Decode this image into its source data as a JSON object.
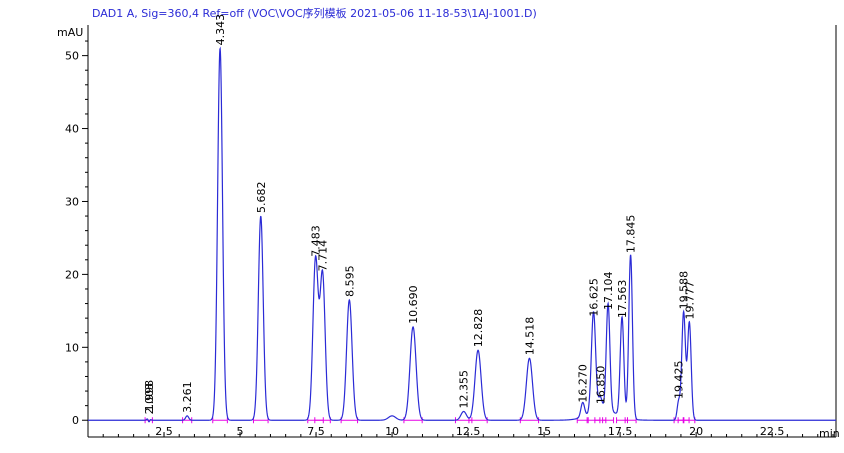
{
  "chart_data": {
    "type": "line",
    "title": "DAD1 A, Sig=360,4 Ref=off (VOC\\VOC序列模板 2021-05-06 11-18-53\\1AJ-1001.D)",
    "ylabel": "mAU",
    "xlabel": "min",
    "xlim": [
      0,
      24.6
    ],
    "ylim": [
      -2.3,
      54.2
    ],
    "x_ticks": [
      2.5,
      5,
      7.5,
      10,
      12.5,
      15,
      17.5,
      20,
      22.5
    ],
    "x_tick_labels": [
      "2.5",
      "5",
      "7.5",
      "10",
      "12.5",
      "15",
      "17.5",
      "20",
      "22.5"
    ],
    "y_ticks": [
      0,
      10,
      20,
      30,
      40,
      50
    ],
    "y_tick_labels": [
      "0",
      "10",
      "20",
      "30",
      "40",
      "50"
    ],
    "grid": false,
    "colors": {
      "trace": "#2b2bd6",
      "baseline": "#e600e6",
      "axis": "#000000"
    },
    "peaks": [
      {
        "rt": 1.998,
        "label": "1.998",
        "height": 0.8,
        "width": 0.04
      },
      {
        "rt": 2.003,
        "label": "2.003",
        "height": -1.0,
        "width": 0.03
      },
      {
        "rt": 3.261,
        "label": "3.261",
        "height": 0.6,
        "width": 0.05
      },
      {
        "rt": 4.343,
        "label": "4.343",
        "height": 51.0,
        "width": 0.08
      },
      {
        "rt": 5.682,
        "label": "5.682",
        "height": 28.0,
        "width": 0.08
      },
      {
        "rt": 7.483,
        "label": "7.483",
        "height": 22.0,
        "width": 0.085
      },
      {
        "rt": 7.714,
        "label": "7.714",
        "height": 20.0,
        "width": 0.085
      },
      {
        "rt": 8.595,
        "label": "8.595",
        "height": 16.5,
        "width": 0.09
      },
      {
        "rt": 10.69,
        "label": "10.690",
        "height": 12.8,
        "width": 0.1
      },
      {
        "rt": 12.355,
        "label": "12.355",
        "height": 1.2,
        "width": 0.09
      },
      {
        "rt": 12.828,
        "label": "12.828",
        "height": 9.6,
        "width": 0.1
      },
      {
        "rt": 14.518,
        "label": "14.518",
        "height": 8.5,
        "width": 0.1
      },
      {
        "rt": 16.27,
        "label": "16.270",
        "height": 2.0,
        "width": 0.06
      },
      {
        "rt": 16.625,
        "label": "16.625",
        "height": 13.8,
        "width": 0.07
      },
      {
        "rt": 16.85,
        "label": "16.850",
        "height": 1.8,
        "width": 0.06
      },
      {
        "rt": 17.104,
        "label": "17.104",
        "height": 14.7,
        "width": 0.06
      },
      {
        "rt": 17.563,
        "label": "17.563",
        "height": 13.6,
        "width": 0.06
      },
      {
        "rt": 17.845,
        "label": "17.845",
        "height": 22.5,
        "width": 0.06
      },
      {
        "rt": 19.425,
        "label": "19.425",
        "height": 2.5,
        "width": 0.05
      },
      {
        "rt": 19.588,
        "label": "19.588",
        "height": 14.8,
        "width": 0.06
      },
      {
        "rt": 19.777,
        "label": "19.777",
        "height": 13.4,
        "width": 0.06
      }
    ],
    "minor_bumps": [
      {
        "rt": 10.0,
        "height": 0.6,
        "width": 0.12
      },
      {
        "rt": 16.95,
        "height": 1.4,
        "width": 0.45
      }
    ]
  }
}
